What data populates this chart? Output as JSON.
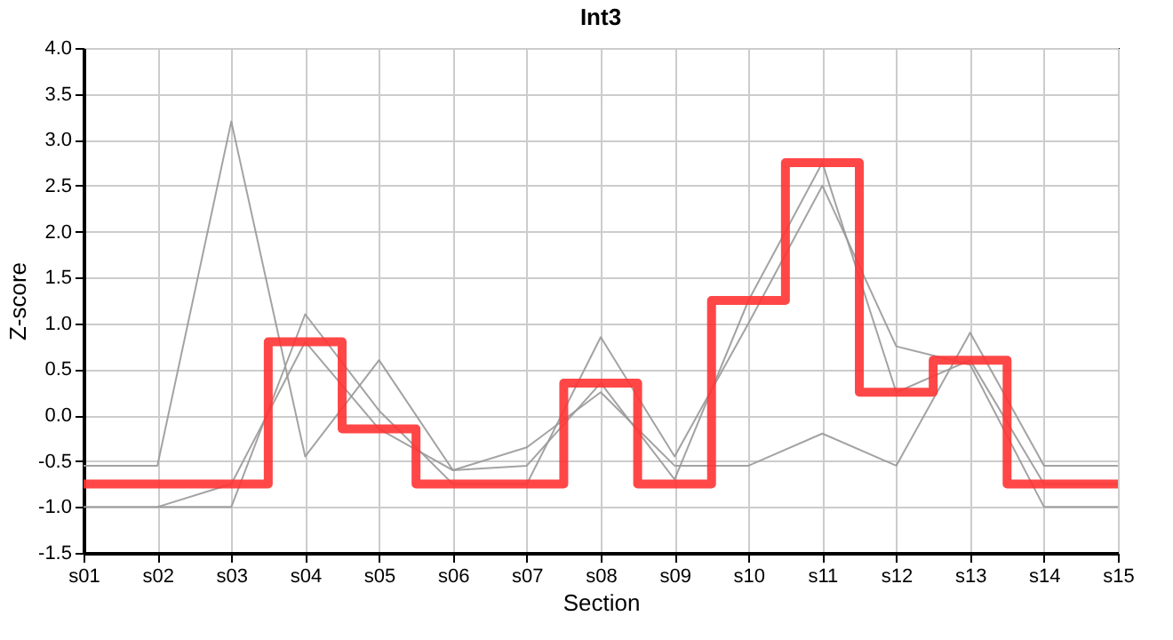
{
  "chart_data": {
    "type": "line",
    "title": "Int3",
    "xlabel": "Section",
    "ylabel": "Z-score",
    "categories": [
      "s01",
      "s02",
      "s03",
      "s04",
      "s05",
      "s06",
      "s07",
      "s08",
      "s09",
      "s10",
      "s11",
      "s12",
      "s13",
      "s14",
      "s15"
    ],
    "series": [
      {
        "color": "#999999",
        "values": [
          -0.55,
          -0.55,
          3.2,
          -0.45,
          0.6,
          -0.6,
          -0.35,
          0.25,
          -0.55,
          -0.55,
          -0.2,
          -0.55,
          0.9,
          -0.55,
          -0.55
        ]
      },
      {
        "color": "#999999",
        "values": [
          -1.0,
          -1.0,
          -1.0,
          1.1,
          0.05,
          -0.75,
          -0.75,
          0.85,
          -0.45,
          1.0,
          2.5,
          0.75,
          0.55,
          -1.0,
          -1.0
        ]
      },
      {
        "color": "#999999",
        "values": [
          null,
          -1.0,
          -0.75,
          0.8,
          -0.15,
          -0.6,
          -0.55,
          0.35,
          -0.7,
          1.25,
          2.75,
          0.25,
          0.6,
          -0.75,
          -0.75
        ]
      },
      {
        "type": "step",
        "color": "#ff3333",
        "values": [
          -0.75,
          -0.75,
          -0.75,
          0.8,
          -0.15,
          -0.75,
          -0.75,
          0.35,
          -0.75,
          1.25,
          2.75,
          0.25,
          0.6,
          -0.75,
          -0.75
        ]
      }
    ],
    "ylim": [
      -1.5,
      4.0
    ],
    "yticks": [
      {
        "value": -1.5,
        "label": "-1.5"
      },
      {
        "value": -1,
        "label": "-1.0"
      },
      {
        "value": -0.5,
        "label": "-0.5"
      },
      {
        "value": 0,
        "label": "0.0"
      },
      {
        "value": 0.5,
        "label": "0.5"
      },
      {
        "value": 1,
        "label": "1.0"
      },
      {
        "value": 1.5,
        "label": "1.5"
      },
      {
        "value": 2,
        "label": "2.0"
      },
      {
        "value": 2.5,
        "label": "2.5"
      },
      {
        "value": 3,
        "label": "3.0"
      },
      {
        "value": 3.5,
        "label": "3.5"
      },
      {
        "value": 4,
        "label": "4.0"
      }
    ],
    "grid": true,
    "legend": false
  }
}
